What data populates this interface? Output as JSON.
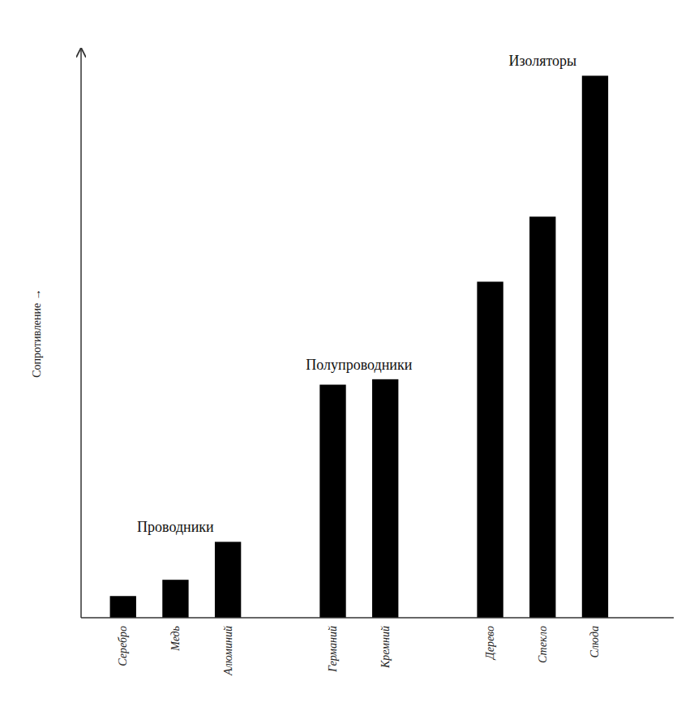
{
  "chart_data": {
    "type": "bar",
    "categories": [
      "Серебро",
      "Медь",
      "Алюминий",
      "Германий",
      "Кремний",
      "Дерево",
      "Стекло",
      "Слюда"
    ],
    "values": [
      4,
      7,
      14,
      43,
      44,
      62,
      74,
      100
    ],
    "color": "#000000",
    "y_label": "Сопротивление →",
    "ylim": [
      0,
      105
    ],
    "yticks": [],
    "tick_labels": "x",
    "grid": false,
    "annotations": [
      {
        "text": "Проводники",
        "categories": [
          "Серебро",
          "Медь",
          "Алюминий"
        ]
      },
      {
        "text": "Полупроводники",
        "categories": [
          "Германий",
          "Кремний"
        ]
      },
      {
        "text": "Изоляторы",
        "categories": [
          "Дерево",
          "Стекло",
          "Слюда"
        ]
      }
    ]
  }
}
